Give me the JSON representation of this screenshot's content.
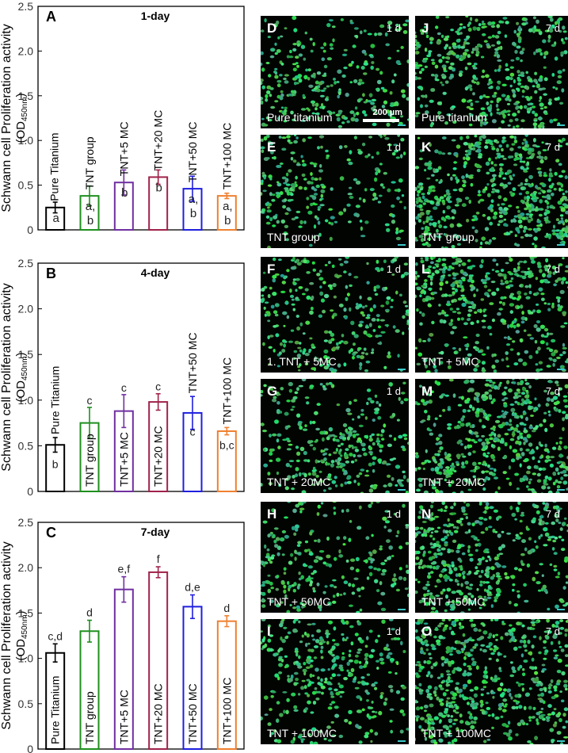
{
  "chart_data": [
    {
      "type": "bar",
      "panel_label": "A",
      "title": "1-day",
      "ylabel_main": "Schwann cell Proliferation  activity",
      "ylabel_unit_prefix": "(OD",
      "ylabel_unit_sub": "450nm",
      "ylabel_unit_suffix": ")",
      "ylim": [
        0,
        2.5
      ],
      "yticks": [
        "0",
        "0.5",
        "1.0",
        "1.5",
        "2.0",
        "2.5"
      ],
      "ytick_values": [
        0,
        0.5,
        1.0,
        1.5,
        2.0,
        2.5
      ],
      "categories": [
        "Pure Titanium",
        "TNT group",
        "TNT+5 MC",
        "TNT+20 MC",
        "TNT+50 MC",
        "TNT+100 MC"
      ],
      "values": [
        0.25,
        0.38,
        0.53,
        0.59,
        0.46,
        0.38
      ],
      "errors": [
        0.06,
        0.11,
        0.14,
        0.08,
        0.14,
        0.03
      ],
      "letters": [
        "a",
        "a,\nb",
        "b",
        "b",
        "a,\nb",
        "a,\nb"
      ],
      "colors": [
        "#000000",
        "#1e8f1e",
        "#7030a0",
        "#a0224a",
        "#1f1fe0",
        "#f08030"
      ]
    },
    {
      "type": "bar",
      "panel_label": "B",
      "title": "4-day",
      "ylabel_main": "Schwann cell Proliferation  activity",
      "ylabel_unit_prefix": "(OD",
      "ylabel_unit_sub": "450nm",
      "ylabel_unit_suffix": ")",
      "ylim": [
        0,
        2.5
      ],
      "yticks": [
        "0",
        "0.5",
        "1.0",
        "1.5",
        "2.0",
        "2.5"
      ],
      "ytick_values": [
        0,
        0.5,
        1.0,
        1.5,
        2.0,
        2.5
      ],
      "categories": [
        "Pure Titanium",
        "TNT group",
        "TNT+5 MC",
        "TNT+20 MC",
        "TNT+50 MC",
        "TNT+100 MC"
      ],
      "values": [
        0.51,
        0.75,
        0.88,
        0.98,
        0.86,
        0.66
      ],
      "errors": [
        0.08,
        0.17,
        0.18,
        0.09,
        0.18,
        0.04
      ],
      "letters": [
        "b",
        "c",
        "c",
        "c",
        "c",
        "b,c"
      ],
      "colors": [
        "#000000",
        "#1e8f1e",
        "#7030a0",
        "#a0224a",
        "#1f1fe0",
        "#f08030"
      ]
    },
    {
      "type": "bar",
      "panel_label": "C",
      "title": "7-day",
      "ylabel_main": "Schwann cell Proliferation  activity",
      "ylabel_unit_prefix": "(OD",
      "ylabel_unit_sub": "450nm",
      "ylabel_unit_suffix": ")",
      "ylim": [
        0,
        2.5
      ],
      "yticks": [
        "0",
        "0.5",
        "1.0",
        "1.5",
        "2.0",
        "2.5"
      ],
      "ytick_values": [
        0,
        0.5,
        1.0,
        1.5,
        2.0,
        2.5
      ],
      "categories": [
        "Pure Titanium",
        "TNT group",
        "TNT+5 MC",
        "TNT+20 MC",
        "TNT+50 MC",
        "TNT+100 MC"
      ],
      "values": [
        1.06,
        1.3,
        1.76,
        1.95,
        1.57,
        1.41
      ],
      "errors": [
        0.1,
        0.12,
        0.14,
        0.06,
        0.13,
        0.06
      ],
      "letters": [
        "c,d",
        "d",
        "e,f",
        "f",
        "d,e",
        "d"
      ],
      "colors": [
        "#000000",
        "#1e8f1e",
        "#7030a0",
        "#a0224a",
        "#1f1fe0",
        "#f08030"
      ]
    }
  ],
  "micrographs": {
    "scalebar_label": "200 µm",
    "day1_label": "1 d",
    "day7_label": "7 d",
    "panels": [
      {
        "label": "D",
        "caption": "Pure titanium"
      },
      {
        "label": "J",
        "caption": "Pure titanium"
      },
      {
        "label": "E",
        "caption": "TNT group"
      },
      {
        "label": "K",
        "caption": "TNT group"
      },
      {
        "label": "F",
        "caption": "1.   TNT + 5MC"
      },
      {
        "label": "L",
        "caption": "TNT + 5MC"
      },
      {
        "label": "G",
        "caption": "TNT + 20MC"
      },
      {
        "label": "M",
        "caption": "TNT + 20MC"
      },
      {
        "label": "H",
        "caption": "TNT + 50MC"
      },
      {
        "label": "N",
        "caption": "TNT + 50MC"
      },
      {
        "label": "I",
        "caption": "TNT + 100MC"
      },
      {
        "label": "O",
        "caption": "TNT + 100MC"
      }
    ]
  }
}
